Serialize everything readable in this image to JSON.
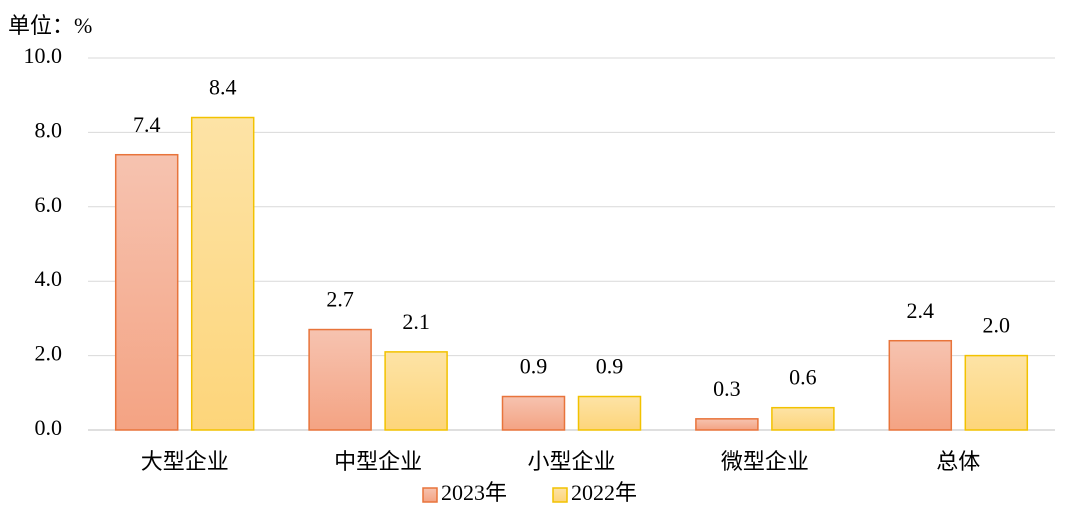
{
  "chart_data": {
    "type": "bar",
    "unit_label": "单位：%",
    "categories": [
      "大型企业",
      "中型企业",
      "小型企业",
      "微型企业",
      "总体"
    ],
    "series": [
      {
        "name": "2023年",
        "color": "#e8743b",
        "values": [
          7.4,
          2.7,
          0.9,
          0.3,
          2.4
        ],
        "value_labels": [
          "7.4",
          "2.7",
          "0.9",
          "0.3",
          "2.4"
        ]
      },
      {
        "name": "2022年",
        "color": "#f2c200",
        "values": [
          8.4,
          2.1,
          0.9,
          0.6,
          2.0
        ],
        "value_labels": [
          "8.4",
          "2.1",
          "0.9",
          "0.6",
          "2.0"
        ]
      }
    ],
    "ylim": [
      0,
      10
    ],
    "yticks": [
      {
        "value": 0,
        "label": "0.0"
      },
      {
        "value": 2,
        "label": "2.0"
      },
      {
        "value": 4,
        "label": "4.0"
      },
      {
        "value": 6,
        "label": "6.0"
      },
      {
        "value": 8,
        "label": "8.0"
      },
      {
        "value": 10,
        "label": "10.0"
      }
    ],
    "grid": true,
    "legend": "bottom"
  }
}
